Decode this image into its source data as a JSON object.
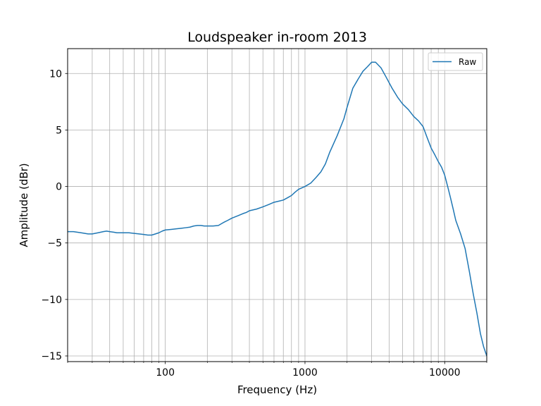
{
  "chart_data": {
    "type": "line",
    "title": "Loudspeaker in-room 2013",
    "xlabel": "Frequency (Hz)",
    "ylabel": "Amplitude (dBr)",
    "xscale": "log",
    "xlim": [
      20,
      20000
    ],
    "ylim": [
      -15.5,
      12.2
    ],
    "xticks": [
      100,
      1000,
      10000
    ],
    "xtick_labels": [
      "100",
      "1000",
      "10000"
    ],
    "yticks": [
      -15,
      -10,
      -5,
      0,
      5,
      10
    ],
    "ytick_labels": [
      "−15",
      "−10",
      "−5",
      "0",
      "5",
      "10"
    ],
    "grid": true,
    "legend_position": "top-right",
    "series": [
      {
        "name": "Raw",
        "color": "#1f77b4",
        "x": [
          20,
          22,
          25,
          28,
          30,
          33,
          36,
          38,
          40,
          43,
          45,
          50,
          55,
          60,
          65,
          70,
          75,
          80,
          85,
          90,
          95,
          100,
          110,
          120,
          130,
          140,
          150,
          160,
          170,
          180,
          190,
          200,
          220,
          240,
          260,
          280,
          300,
          330,
          360,
          380,
          400,
          450,
          500,
          550,
          600,
          650,
          700,
          750,
          800,
          850,
          900,
          1000,
          1100,
          1200,
          1300,
          1400,
          1500,
          1700,
          1900,
          2000,
          2200,
          2400,
          2600,
          2800,
          3000,
          3200,
          3500,
          3800,
          4200,
          4600,
          5000,
          5500,
          6000,
          6500,
          7000,
          7500,
          8000,
          8500,
          9000,
          9500,
          10000,
          10500,
          11000,
          11500,
          12000,
          13000,
          14000,
          15000,
          16000,
          17000,
          18000,
          19000,
          20000
        ],
        "y": [
          -4.0,
          -4.0,
          -4.1,
          -4.2,
          -4.2,
          -4.1,
          -4.0,
          -3.95,
          -4.0,
          -4.05,
          -4.1,
          -4.1,
          -4.1,
          -4.15,
          -4.2,
          -4.25,
          -4.3,
          -4.3,
          -4.2,
          -4.1,
          -3.95,
          -3.85,
          -3.8,
          -3.75,
          -3.7,
          -3.65,
          -3.6,
          -3.5,
          -3.45,
          -3.45,
          -3.5,
          -3.5,
          -3.5,
          -3.45,
          -3.2,
          -3.0,
          -2.8,
          -2.6,
          -2.4,
          -2.3,
          -2.15,
          -2.0,
          -1.8,
          -1.6,
          -1.4,
          -1.3,
          -1.2,
          -1.0,
          -0.8,
          -0.5,
          -0.25,
          0.0,
          0.3,
          0.8,
          1.3,
          2.0,
          3.0,
          4.5,
          6.0,
          7.0,
          8.7,
          9.5,
          10.2,
          10.6,
          11.0,
          11.0,
          10.5,
          9.7,
          8.7,
          7.9,
          7.3,
          6.8,
          6.2,
          5.8,
          5.3,
          4.3,
          3.4,
          2.8,
          2.2,
          1.7,
          1.0,
          0.0,
          -1.0,
          -2.0,
          -3.0,
          -4.2,
          -5.5,
          -7.5,
          -9.5,
          -11.2,
          -13.0,
          -14.2,
          -15.0
        ]
      }
    ]
  }
}
